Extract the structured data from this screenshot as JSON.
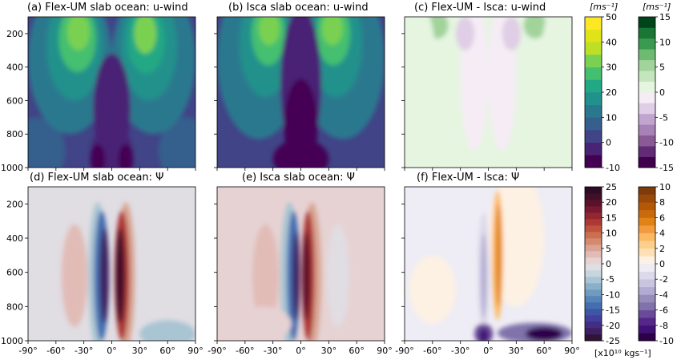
{
  "chart_data": [
    {
      "type": "heatmap",
      "title": "(a) Flex-UM slab ocean: u-wind",
      "field": "u-wind",
      "colormap": "viridis",
      "colorbar": "left",
      "ylim": [
        1000,
        100
      ],
      "xlim": [
        -90,
        90
      ],
      "features": [
        {
          "lat": -36,
          "p": 200,
          "value": 32
        },
        {
          "lat": 36,
          "p": 220,
          "value": 30
        },
        {
          "lat": -15,
          "p": 950,
          "value": -8
        },
        {
          "lat": 15,
          "p": 950,
          "value": -8
        }
      ]
    },
    {
      "type": "heatmap",
      "title": "(b) Isca slab ocean: u-wind",
      "field": "u-wind",
      "colormap": "viridis",
      "colorbar": "left",
      "ylim": [
        1000,
        100
      ],
      "xlim": [
        -90,
        90
      ],
      "features": [
        {
          "lat": -34,
          "p": 180,
          "value": 30
        },
        {
          "lat": 34,
          "p": 180,
          "value": 30
        },
        {
          "lat": 0,
          "p": 700,
          "value": -8
        }
      ]
    },
    {
      "type": "heatmap",
      "title": "(c) Flex-UM - Isca: u-wind",
      "field": "u-wind difference",
      "colormap": "PRGn",
      "colorbar": "right",
      "ylim": [
        1000,
        100
      ],
      "xlim": [
        -90,
        90
      ],
      "features": [
        {
          "lat": -55,
          "p": 150,
          "value": 4
        },
        {
          "lat": 50,
          "p": 150,
          "value": 4
        },
        {
          "lat": -20,
          "p": 300,
          "value": -2
        },
        {
          "lat": 20,
          "p": 300,
          "value": -2
        }
      ]
    },
    {
      "type": "heatmap",
      "title": "(d) Flex-UM slab ocean: Ψ",
      "field": "streamfunction",
      "colormap": "twilight_shifted",
      "colorbar": "left",
      "ylim": [
        1000,
        100
      ],
      "xlim": [
        -90,
        90
      ],
      "features": [
        {
          "lat": -10,
          "p": 620,
          "value": -20
        },
        {
          "lat": 10,
          "p": 620,
          "value": 21
        },
        {
          "lat": -40,
          "p": 620,
          "value": 3
        },
        {
          "lat": 40,
          "p": 620,
          "value": -2
        }
      ]
    },
    {
      "type": "heatmap",
      "title": "(e) Isca slab ocean: Ψ",
      "field": "streamfunction",
      "colormap": "twilight_shifted",
      "colorbar": "left",
      "ylim": [
        1000,
        100
      ],
      "xlim": [
        -90,
        90
      ],
      "features": [
        {
          "lat": -8,
          "p": 620,
          "value": -21
        },
        {
          "lat": 8,
          "p": 620,
          "value": 19
        },
        {
          "lat": -40,
          "p": 620,
          "value": 3
        },
        {
          "lat": 40,
          "p": 620,
          "value": -2
        }
      ]
    },
    {
      "type": "heatmap",
      "title": "(f) Flex-UM - Isca: Ψ",
      "field": "streamfunction difference",
      "colormap": "PuOr",
      "colorbar": "right",
      "ylim": [
        1000,
        100
      ],
      "xlim": [
        -90,
        90
      ],
      "features": [
        {
          "lat": 10,
          "p": 500,
          "value": 5
        },
        {
          "lat": -5,
          "p": 600,
          "value": -4
        },
        {
          "lat": -5,
          "p": 950,
          "value": -9
        },
        {
          "lat": 60,
          "p": 950,
          "value": -10
        }
      ]
    }
  ],
  "axes": {
    "ytick_labels": [
      "200",
      "400",
      "600",
      "800",
      "1000"
    ],
    "ytick_values": [
      200,
      400,
      600,
      800,
      1000
    ],
    "xtick_labels": [
      "-90°",
      "-60°",
      "-30°",
      "0°",
      "30°",
      "60°",
      "90°"
    ],
    "xtick_values": [
      -90,
      -60,
      -30,
      0,
      30,
      60,
      90
    ]
  },
  "colorbars": [
    {
      "name": "u-wind",
      "unit": "[ms⁻¹]",
      "min": -10,
      "max": 50,
      "step": 5,
      "tick_values": [
        -10,
        0,
        10,
        20,
        30,
        40,
        50
      ],
      "tick_labels": [
        "-10",
        "0",
        "10",
        "20",
        "30",
        "40",
        "50"
      ],
      "colors": [
        "#440154",
        "#482475",
        "#414487",
        "#355f8d",
        "#2a788e",
        "#21918c",
        "#22a884",
        "#44bf70",
        "#7ad151",
        "#bddf26",
        "#e0e318",
        "#fde725"
      ]
    },
    {
      "name": "u-wind difference",
      "unit": "[ms⁻¹]",
      "min": -15,
      "max": 15,
      "step": 2.5,
      "tick_values": [
        -15,
        -10,
        -5,
        0,
        5,
        10,
        15
      ],
      "tick_labels": [
        "-15",
        "-10",
        "-5",
        "0",
        "5",
        "10",
        "15"
      ],
      "colors": [
        "#40004b",
        "#612b75",
        "#8a5a97",
        "#a682b7",
        "#c2a5cf",
        "#e0cde6",
        "#f5ecf5",
        "#e5f5e0",
        "#c3e6bf",
        "#a1d39b",
        "#6dbb72",
        "#3a9a4f",
        "#1a7634",
        "#00441b"
      ]
    },
    {
      "name": "streamfunction",
      "unit": "",
      "min": -25,
      "max": 25,
      "step": 2.5,
      "tick_values": [
        -25,
        -20,
        -15,
        -10,
        -5,
        0,
        5,
        10,
        15,
        20,
        25
      ],
      "tick_labels": [
        "-25",
        "-20",
        "-15",
        "-10",
        "-5",
        "0",
        "5",
        "10",
        "15",
        "20",
        "25"
      ],
      "colors": [
        "#2f1436",
        "#3e2060",
        "#432d85",
        "#42409b",
        "#3f56a8",
        "#456eb1",
        "#5784b9",
        "#6f9bc1",
        "#8ab0c9",
        "#a9c4d2",
        "#c7d6dd",
        "#e0dde3",
        "#e6d2d3",
        "#e1bcb7",
        "#d9a491",
        "#d38a6e",
        "#cb6f51",
        "#bf533e",
        "#ad3935",
        "#932630",
        "#77192f",
        "#5a112a",
        "#40102a",
        "#2f0c23"
      ]
    },
    {
      "name": "streamfunction difference",
      "unit": "[x10¹⁰ kgs⁻¹]",
      "min": -10,
      "max": 10,
      "step": 1,
      "tick_values": [
        -10,
        -8,
        -6,
        -4,
        -2,
        0,
        2,
        4,
        6,
        8,
        10
      ],
      "tick_labels": [
        "-10",
        "-8",
        "-6",
        "-4",
        "-2",
        "0",
        "2",
        "4",
        "6",
        "8",
        "10"
      ],
      "colors": [
        "#2d004b",
        "#3f1273",
        "#542788",
        "#6a4b9a",
        "#8073ac",
        "#978db8",
        "#b2abd2",
        "#c9c4e0",
        "#dcd9eb",
        "#eeecf4",
        "#fdf1e4",
        "#fee0b6",
        "#fdcf8d",
        "#fdb863",
        "#f29b3e",
        "#e08214",
        "#c96b0c",
        "#b35806",
        "#99490a",
        "#7f3b08"
      ]
    }
  ]
}
